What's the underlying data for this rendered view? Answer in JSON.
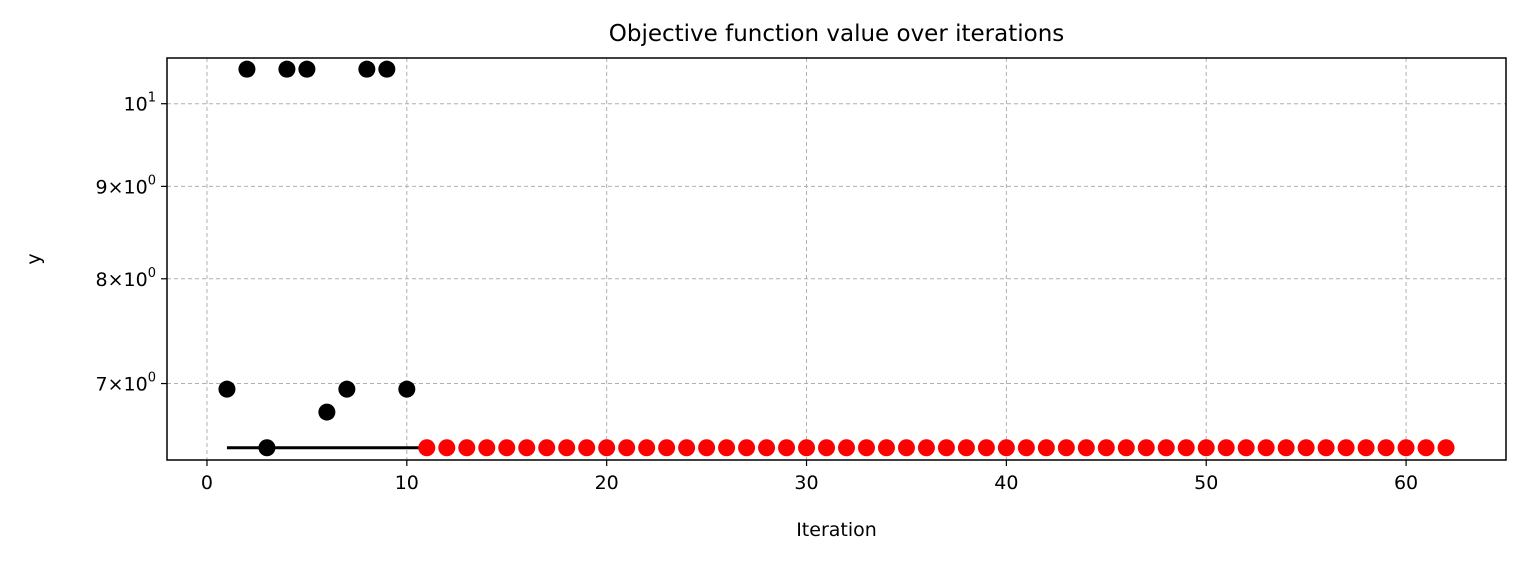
{
  "chart_data": {
    "type": "scatter",
    "title": "Objective function value over iterations",
    "xlabel": "Iteration",
    "ylabel": "y",
    "xlim": [
      -2,
      65
    ],
    "ylim": [
      6.35,
      10.6
    ],
    "yscale": "log",
    "grid": true,
    "x_ticks": [
      0,
      10,
      20,
      30,
      40,
      50,
      60
    ],
    "x_tick_labels": [
      "0",
      "10",
      "20",
      "30",
      "40",
      "50",
      "60"
    ],
    "y_ticks": [
      7,
      8,
      9,
      10
    ],
    "y_tick_labels": [
      {
        "mantissa": "7",
        "base": "10",
        "exp": "0"
      },
      {
        "mantissa": "8",
        "base": "10",
        "exp": "0"
      },
      {
        "mantissa": "9",
        "base": "10",
        "exp": "0"
      },
      {
        "mantissa": "",
        "base": "10",
        "exp": "1"
      }
    ],
    "series": [
      {
        "color": "#000000",
        "marker": "circle",
        "x": [
          1,
          2,
          3,
          4,
          5,
          6,
          7,
          8,
          9,
          10
        ],
        "y": [
          6.95,
          10.45,
          6.45,
          10.45,
          10.45,
          6.75,
          6.95,
          10.45,
          10.45,
          6.95
        ]
      },
      {
        "color": "#ff0000",
        "marker": "circle",
        "x_start": 11,
        "x_end": 62,
        "y_constant": 6.45
      }
    ],
    "lines": [
      {
        "color": "#000000",
        "x": [
          1,
          11
        ],
        "y": [
          6.45,
          6.45
        ]
      }
    ]
  }
}
